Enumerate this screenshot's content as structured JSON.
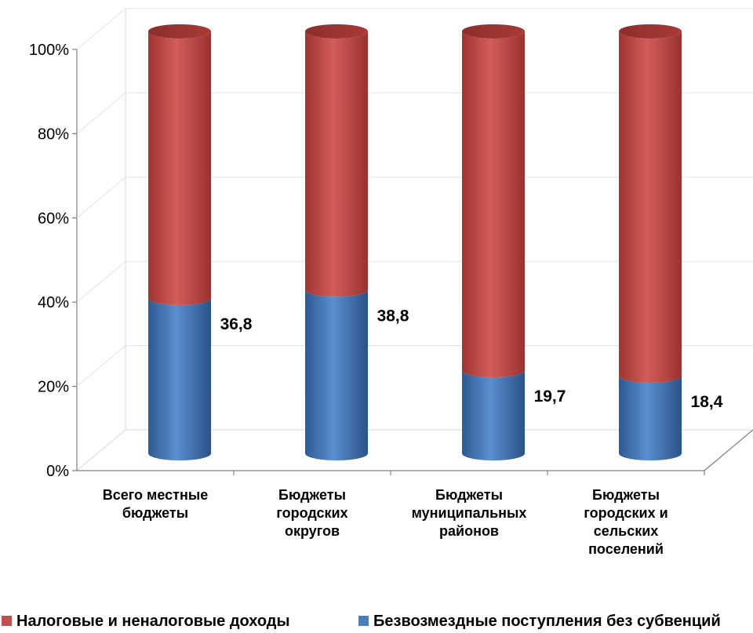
{
  "chart_data": {
    "type": "bar",
    "stacked": true,
    "percent_stacked": true,
    "shape": "cylinder-3d",
    "categories": [
      [
        "Всего местные",
        "бюджеты"
      ],
      [
        "Бюджеты",
        "городских",
        "округов"
      ],
      [
        "Бюджеты",
        "муниципальных",
        "районов"
      ],
      [
        "Бюджеты",
        "городских  и",
        "сельских",
        "поселений"
      ]
    ],
    "series": [
      {
        "name": "Безвозмездные поступления без субвенций",
        "color": "#4a7ebb",
        "values": [
          36.8,
          38.8,
          19.7,
          18.4
        ],
        "labels": [
          "36,8",
          "38,8",
          "19,7",
          "18,4"
        ]
      },
      {
        "name": "Налоговые и неналоговые доходы",
        "color": "#c0504d",
        "values": [
          63.2,
          61.2,
          80.3,
          81.6
        ]
      }
    ],
    "y_ticks": [
      "0%",
      "20%",
      "40%",
      "60%",
      "80%",
      "100%"
    ],
    "ylim": [
      0,
      100
    ],
    "grid": true,
    "legend_position": "bottom",
    "legend_order": [
      "Налоговые и неналоговые доходы",
      "Безвозмездные поступления без субвенций"
    ]
  }
}
